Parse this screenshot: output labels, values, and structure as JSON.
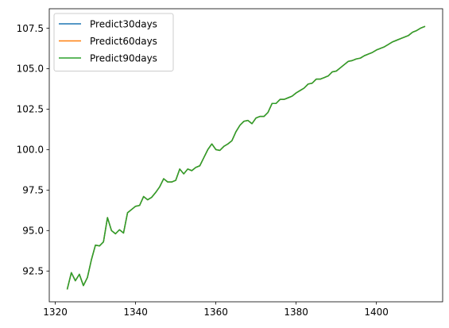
{
  "chart_data": {
    "type": "line",
    "title": "",
    "xlabel": "",
    "ylabel": "",
    "xlim": [
      1318.5,
      1416.5
    ],
    "ylim": [
      90.6,
      108.7
    ],
    "xticks": [
      1320,
      1340,
      1360,
      1380,
      1400
    ],
    "yticks": [
      92.5,
      95.0,
      97.5,
      100.0,
      102.5,
      105.0,
      107.5
    ],
    "xtick_labels": [
      "1320",
      "1340",
      "1360",
      "1380",
      "1400"
    ],
    "ytick_labels": [
      "92.5",
      "95.0",
      "97.5",
      "100.0",
      "102.5",
      "105.0",
      "107.5"
    ],
    "grid": false,
    "legend_position": "top-left",
    "x": [
      1323,
      1324,
      1325,
      1326,
      1327,
      1328,
      1329,
      1330,
      1331,
      1332,
      1333,
      1334,
      1335,
      1336,
      1337,
      1338,
      1339,
      1340,
      1341,
      1342,
      1343,
      1344,
      1345,
      1346,
      1347,
      1348,
      1349,
      1350,
      1351,
      1352,
      1353,
      1354,
      1355,
      1356,
      1357,
      1358,
      1359,
      1360,
      1361,
      1362,
      1363,
      1364,
      1365,
      1366,
      1367,
      1368,
      1369,
      1370,
      1371,
      1372,
      1373,
      1374,
      1375,
      1376,
      1377,
      1378,
      1379,
      1380,
      1381,
      1382,
      1383,
      1384,
      1385,
      1386,
      1387,
      1388,
      1389,
      1390,
      1391,
      1392,
      1393,
      1394,
      1395,
      1396,
      1397,
      1398,
      1399,
      1400,
      1401,
      1402,
      1403,
      1404,
      1405,
      1406,
      1407,
      1408,
      1409,
      1410,
      1411,
      1412
    ],
    "series": [
      {
        "name": "Predict30days",
        "color": "#1f77b4",
        "values": [
          91.4,
          92.4,
          91.9,
          92.3,
          91.6,
          92.1,
          93.2,
          94.1,
          94.05,
          94.3,
          95.8,
          95.0,
          94.8,
          95.05,
          94.85,
          96.1,
          96.3,
          96.5,
          96.55,
          97.1,
          96.9,
          97.05,
          97.35,
          97.7,
          98.2,
          98.0,
          98.0,
          98.1,
          98.8,
          98.5,
          98.8,
          98.7,
          98.9,
          99.0,
          99.5,
          100.0,
          100.35,
          100.0,
          99.95,
          100.2,
          100.35,
          100.55,
          101.1,
          101.5,
          101.75,
          101.8,
          101.6,
          101.95,
          102.05,
          102.05,
          102.3,
          102.85,
          102.85,
          103.1,
          103.1,
          103.2,
          103.3,
          103.5,
          103.65,
          103.8,
          104.05,
          104.1,
          104.35,
          104.35,
          104.45,
          104.55,
          104.8,
          104.85,
          105.05,
          105.25,
          105.45,
          105.5,
          105.6,
          105.65,
          105.8,
          105.9,
          106.0,
          106.15,
          106.25,
          106.35,
          106.5,
          106.65,
          106.75,
          106.85,
          106.95,
          107.05,
          107.25,
          107.35,
          107.5,
          107.6
        ]
      },
      {
        "name": "Predict60days",
        "color": "#ff7f0e",
        "values": [
          91.4,
          92.4,
          91.9,
          92.3,
          91.6,
          92.1,
          93.2,
          94.1,
          94.05,
          94.3,
          95.8,
          95.0,
          94.8,
          95.05,
          94.85,
          96.1,
          96.3,
          96.5,
          96.55,
          97.1,
          96.9,
          97.05,
          97.35,
          97.7,
          98.2,
          98.0,
          98.0,
          98.1,
          98.8,
          98.5,
          98.8,
          98.7,
          98.9,
          99.0,
          99.5,
          100.0,
          100.35,
          100.0,
          99.95,
          100.2,
          100.35,
          100.55,
          101.1,
          101.5,
          101.75,
          101.8,
          101.6,
          101.95,
          102.05,
          102.05,
          102.3,
          102.85,
          102.85,
          103.1,
          103.1,
          103.2,
          103.3,
          103.5,
          103.65,
          103.8,
          104.05,
          104.1,
          104.35,
          104.35,
          104.45,
          104.55,
          104.8,
          104.85,
          105.05,
          105.25,
          105.45,
          105.5,
          105.6,
          105.65,
          105.8,
          105.9,
          106.0,
          106.15,
          106.25,
          106.35,
          106.5,
          106.65,
          106.75,
          106.85,
          106.95,
          107.05,
          107.25,
          107.35,
          107.5,
          107.6
        ]
      },
      {
        "name": "Predict90days",
        "color": "#2ca02c",
        "values": [
          91.4,
          92.4,
          91.9,
          92.3,
          91.6,
          92.1,
          93.2,
          94.1,
          94.05,
          94.3,
          95.8,
          95.0,
          94.8,
          95.05,
          94.85,
          96.1,
          96.3,
          96.5,
          96.55,
          97.1,
          96.9,
          97.05,
          97.35,
          97.7,
          98.2,
          98.0,
          98.0,
          98.1,
          98.8,
          98.5,
          98.8,
          98.7,
          98.9,
          99.0,
          99.5,
          100.0,
          100.35,
          100.0,
          99.95,
          100.2,
          100.35,
          100.55,
          101.1,
          101.5,
          101.75,
          101.8,
          101.6,
          101.95,
          102.05,
          102.05,
          102.3,
          102.85,
          102.85,
          103.1,
          103.1,
          103.2,
          103.3,
          103.5,
          103.65,
          103.8,
          104.05,
          104.1,
          104.35,
          104.35,
          104.45,
          104.55,
          104.8,
          104.85,
          105.05,
          105.25,
          105.45,
          105.5,
          105.6,
          105.65,
          105.8,
          105.9,
          106.0,
          106.15,
          106.25,
          106.35,
          106.5,
          106.65,
          106.75,
          106.85,
          106.95,
          107.05,
          107.25,
          107.35,
          107.5,
          107.6
        ]
      }
    ]
  }
}
